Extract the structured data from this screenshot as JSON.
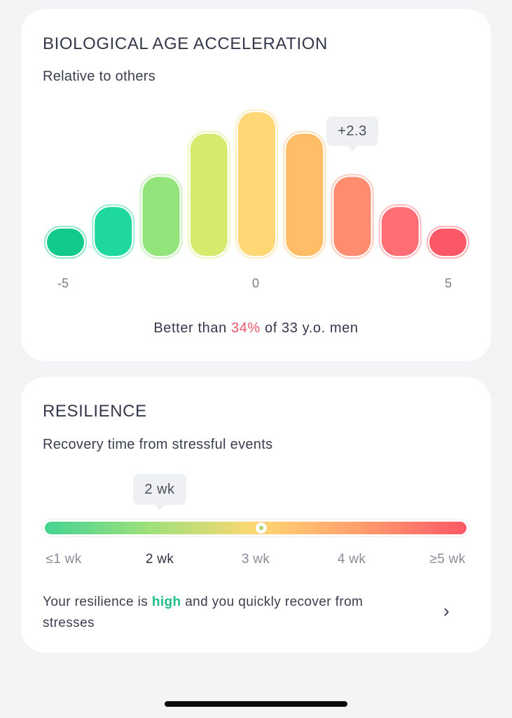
{
  "bio_card": {
    "title": "BIOLOGICAL AGE ACCELERATION",
    "subtitle": "Relative to others",
    "tooltip": "+2.3",
    "summary_prefix": "Better than ",
    "summary_value": "34%",
    "summary_suffix": " of 33 y.o. men"
  },
  "chart_data": {
    "type": "bar",
    "title": "",
    "x_ticks": [
      "-5",
      "0",
      "5"
    ],
    "bin_count": 9,
    "relative_heights": [
      0.19,
      0.34,
      0.55,
      0.85,
      1.0,
      0.85,
      0.55,
      0.34,
      0.19
    ],
    "colors": [
      "#10c98a",
      "#1fd89f",
      "#93e47a",
      "#d6ea6d",
      "#ffd774",
      "#ffbd68",
      "#ff8c6e",
      "#ff6e75",
      "#fb5867"
    ],
    "highlight_index": 6,
    "highlight_value": "+2.3"
  },
  "resilience_card": {
    "title": "RESILIENCE",
    "subtitle": "Recovery time from stressful events",
    "tooltip": "2 wk",
    "scale_labels": [
      "≤1 wk",
      "2 wk",
      "3 wk",
      "4 wk",
      "≥5 wk"
    ],
    "selected_index": 1,
    "summary_prefix": "Your resilience is ",
    "summary_value": "high",
    "summary_suffix": " and you quickly recover from stresses",
    "gradient_colors": [
      "#44d393",
      "#9fe07a",
      "#ffd772",
      "#ff9d6d",
      "#fb5867"
    ]
  },
  "icons": {
    "chevron": "chevron-right-icon"
  }
}
